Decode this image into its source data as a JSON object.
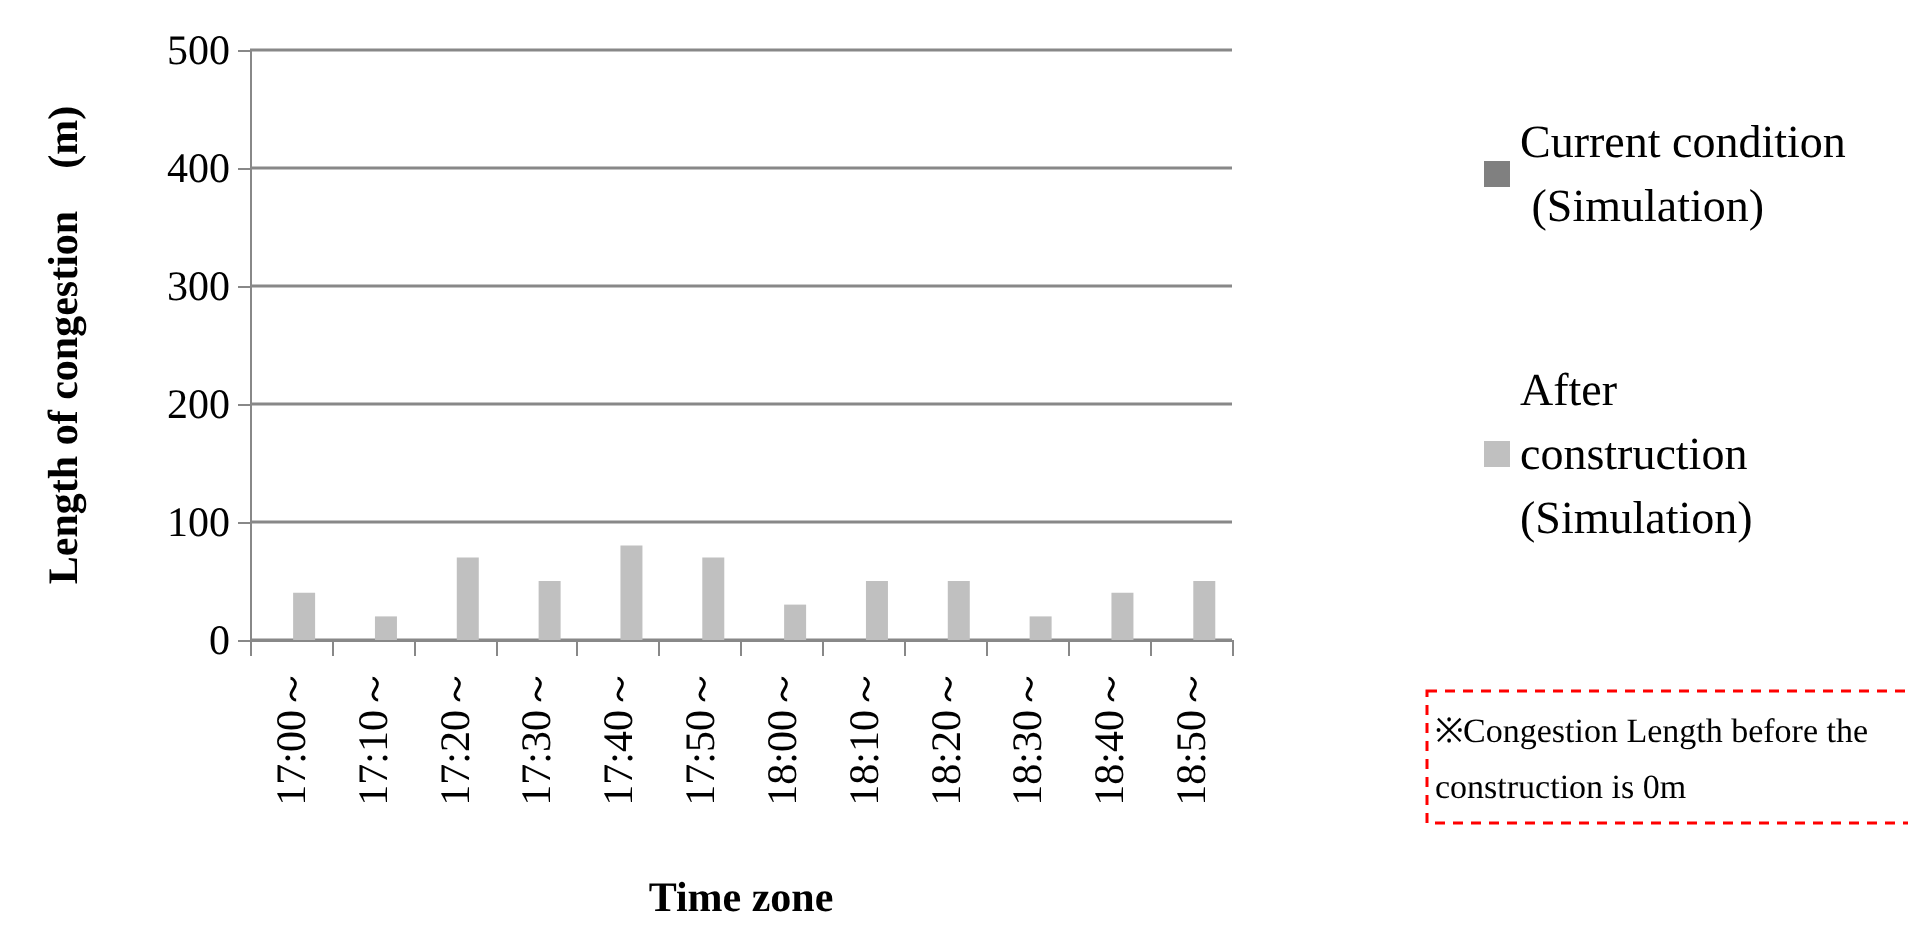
{
  "chart_data": {
    "type": "bar",
    "xlabel": "Time zone",
    "ylabel": "Length of congestion　(m)",
    "categories": [
      "17:00～",
      "17:10～",
      "17:20～",
      "17:30～",
      "17:40～",
      "17:50～",
      "18:00～",
      "18:10～",
      "18:20～",
      "18:30～",
      "18:40～",
      "18:50～"
    ],
    "series": [
      {
        "name": "Current condition (Simulation)",
        "color": "#808080",
        "values": [
          0,
          0,
          0,
          0,
          0,
          0,
          0,
          0,
          0,
          0,
          0,
          0
        ]
      },
      {
        "name": "After construction (Simulation)",
        "color": "#c0c0c0",
        "values": [
          40,
          20,
          70,
          50,
          80,
          70,
          30,
          50,
          50,
          20,
          40,
          50
        ]
      }
    ],
    "ylim": [
      0,
      500
    ],
    "yticks": [
      0,
      100,
      200,
      300,
      400,
      500
    ],
    "grid": "y",
    "legend": "right",
    "annotations": [
      "※Congestion Length before the construction is 0m"
    ]
  }
}
